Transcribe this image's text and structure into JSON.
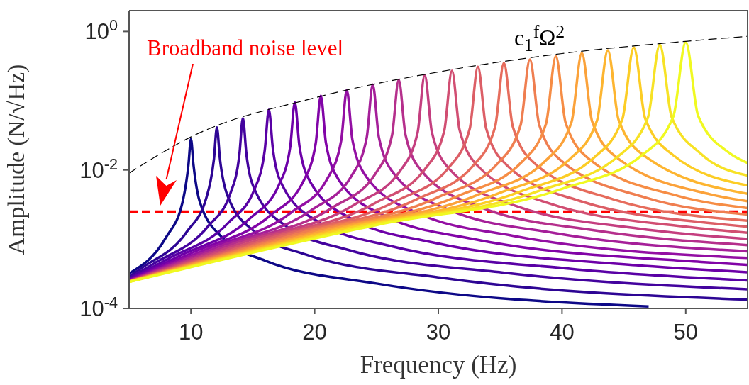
{
  "chart_data": {
    "type": "line",
    "xlabel": "Frequency (Hz)",
    "ylabel": "Amplitude (N/√Hz)",
    "log": "y",
    "xlim": [
      5,
      55
    ],
    "ylim": [
      0.0001,
      2
    ],
    "xticks": [
      10,
      20,
      30,
      40,
      50
    ],
    "yticks": [
      {
        "value": 0.0001,
        "label": "10$^{-4}$"
      },
      {
        "value": 0.01,
        "label": "10$^{-2}$"
      },
      {
        "value": 1,
        "label": "10$^{0}$"
      }
    ],
    "line_style": "solid",
    "ref_lines": [
      {
        "axis": "y",
        "value": 0.0025,
        "label": "Broadband noise level",
        "color": "#ff0000",
        "line_style": "dashed"
      }
    ],
    "series": [
      {
        "color": "#0d0887",
        "x": [
          5,
          8,
          9.3,
          9.8,
          10,
          10.2,
          10.7,
          12.5,
          16,
          25,
          47
        ],
        "values": [
          0.00032,
          0.00107,
          0.0033,
          0.0119,
          0.028,
          0.0121,
          0.00354,
          0.00107,
          0.00049,
          0.000229,
          0.000107
        ]
      },
      {
        "color": "#2d0594",
        "x": [
          5,
          6.05,
          9.68,
          11.25,
          11.86,
          12.1,
          12.34,
          12.95,
          15.13,
          19.36,
          30.25,
          55
        ],
        "values": [
          0.000289,
          0.000387,
          0.00129,
          0.00399,
          0.0144,
          0.041,
          0.0147,
          0.00428,
          0.00129,
          0.000595,
          0.000277,
          0.000134
        ]
      },
      {
        "color": "#43039e",
        "x": [
          5,
          7.1,
          11.36,
          13.21,
          13.92,
          14.2,
          14.48,
          15.19,
          17.75,
          22.72,
          35.5,
          55
        ],
        "values": [
          0.000274,
          0.000454,
          0.00152,
          0.00469,
          0.0169,
          0.056,
          0.0172,
          0.00503,
          0.00152,
          0.000699,
          0.000325,
          0.000189
        ]
      },
      {
        "color": "#5901a5",
        "x": [
          5,
          8.15,
          13.04,
          15.16,
          15.97,
          16.3,
          16.63,
          17.44,
          20.38,
          26.08,
          40.75,
          55
        ],
        "values": [
          0.000265,
          0.000522,
          0.00174,
          0.00538,
          0.0194,
          0.074,
          0.0198,
          0.00577,
          0.00174,
          0.000802,
          0.000373,
          0.000254
        ]
      },
      {
        "color": "#6d00a8",
        "x": [
          5,
          9.2,
          14.72,
          17.11,
          18.03,
          18.4,
          18.77,
          19.69,
          23,
          29.44,
          46,
          55
        ],
        "values": [
          0.000259,
          0.000589,
          0.00196,
          0.00607,
          0.0219,
          0.095,
          0.0223,
          0.00651,
          0.00196,
          0.000905,
          0.000421,
          0.000333
        ]
      },
      {
        "color": "#8104a7",
        "x": [
          5,
          10.25,
          16.4,
          19.07,
          20.09,
          20.5,
          20.91,
          21.94,
          25.63,
          32.8,
          51.25,
          55
        ],
        "values": [
          0.000255,
          0.000656,
          0.00219,
          0.00677,
          0.0244,
          0.118,
          0.0248,
          0.00726,
          0.00219,
          0.00101,
          0.000469,
          0.000426
        ]
      },
      {
        "color": "#930fa3",
        "x": [
          5,
          11.3,
          18.08,
          21.02,
          22.15,
          22.6,
          23.05,
          24.18,
          28.25,
          36.16,
          55
        ],
        "values": [
          0.000252,
          0.000723,
          0.00241,
          0.00746,
          0.0268,
          0.143,
          0.0274,
          0.008,
          0.00241,
          0.00111,
          0.000536
        ]
      },
      {
        "color": "#a51f99",
        "x": [
          5,
          12.35,
          19.76,
          22.97,
          24.21,
          24.7,
          25.19,
          26.43,
          30.88,
          39.52,
          55
        ],
        "values": [
          0.00025,
          0.00079,
          0.00264,
          0.00815,
          0.0293,
          0.171,
          0.0299,
          0.00874,
          0.00264,
          0.00122,
          0.000667
        ]
      },
      {
        "color": "#b52f8c",
        "x": [
          5,
          13.4,
          21.44,
          24.92,
          26.26,
          26.8,
          27.34,
          28.68,
          33.5,
          42.88,
          55
        ],
        "values": [
          0.000249,
          0.000858,
          0.00286,
          0.00884,
          0.0318,
          0.201,
          0.0325,
          0.00949,
          0.00286,
          0.00132,
          0.000822
        ]
      },
      {
        "color": "#c43e7f",
        "x": [
          5,
          14.45,
          23.12,
          26.88,
          28.32,
          28.9,
          29.48,
          30.92,
          36.13,
          46.24,
          55
        ],
        "values": [
          0.000247,
          0.000925,
          0.00308,
          0.00954,
          0.0343,
          0.234,
          0.035,
          0.0102,
          0.00308,
          0.00142,
          0.00101
        ]
      },
      {
        "color": "#d14e72",
        "x": [
          5,
          15.55,
          24.88,
          28.92,
          30.48,
          31.1,
          31.72,
          33.28,
          38.88,
          49.76,
          55
        ],
        "values": [
          0.000246,
          0.000995,
          0.00332,
          0.0103,
          0.0369,
          0.271,
          0.0377,
          0.011,
          0.00332,
          0.00153,
          0.00124
        ]
      },
      {
        "color": "#dc5e66",
        "x": [
          5,
          16.6,
          26.56,
          30.88,
          32.54,
          33.2,
          33.86,
          35.52,
          41.5,
          53.12,
          55
        ],
        "values": [
          0.000246,
          0.00106,
          0.00354,
          0.011,
          0.0394,
          0.309,
          0.0402,
          0.0118,
          0.00354,
          0.00163,
          0.00151
        ]
      },
      {
        "color": "#e66c5c",
        "x": [
          5,
          17.65,
          28.24,
          32.83,
          34.59,
          35.3,
          36.01,
          37.77,
          44.13,
          55
        ],
        "values": [
          0.000245,
          0.00113,
          0.00377,
          0.0116,
          0.0419,
          0.349,
          0.0428,
          0.0125,
          0.00377,
          0.00185
        ]
      },
      {
        "color": "#ef7e50",
        "x": [
          5,
          18.7,
          29.92,
          34.78,
          36.65,
          37.4,
          38.15,
          40.02,
          46.75,
          55
        ],
        "values": [
          0.000244,
          0.0012,
          0.00399,
          0.0123,
          0.0444,
          0.392,
          0.0453,
          0.0132,
          0.00399,
          0.00227
        ]
      },
      {
        "color": "#f68d45",
        "x": [
          5,
          19.75,
          31.6,
          36.74,
          38.71,
          39.5,
          40.29,
          42.27,
          49.38,
          55
        ],
        "values": [
          0.000244,
          0.00126,
          0.00421,
          0.013,
          0.0469,
          0.437,
          0.0479,
          0.014,
          0.00421,
          0.00281
        ]
      },
      {
        "color": "#fba23a",
        "x": [
          5,
          20.8,
          33.28,
          38.69,
          40.77,
          41.6,
          42.43,
          44.51,
          52,
          55
        ],
        "values": [
          0.000244,
          0.00133,
          0.00444,
          0.0137,
          0.0494,
          0.485,
          0.0504,
          0.0147,
          0.00444,
          0.00353
        ]
      },
      {
        "color": "#fdb530",
        "x": [
          5,
          21.85,
          34.96,
          40.64,
          42.83,
          43.7,
          44.57,
          46.76,
          55
        ],
        "values": [
          0.000243,
          0.0014,
          0.00466,
          0.0144,
          0.0519,
          0.535,
          0.053,
          0.0155,
          0.00452
        ]
      },
      {
        "color": "#fccd25",
        "x": [
          5,
          22.9,
          36.64,
          42.59,
          44.88,
          45.8,
          46.72,
          49.01,
          55
        ],
        "values": [
          0.000243,
          0.00147,
          0.00489,
          0.0151,
          0.0544,
          0.587,
          0.0555,
          0.0162,
          0.00597
        ]
      },
      {
        "color": "#f7e225",
        "x": [
          5,
          23.95,
          38.32,
          44.55,
          46.94,
          47.9,
          48.86,
          51.25,
          55
        ],
        "values": [
          0.000243,
          0.00153,
          0.00511,
          0.0158,
          0.0569,
          0.642,
          0.0581,
          0.017,
          0.0083
        ]
      },
      {
        "color": "#f0f921",
        "x": [
          5,
          25,
          40,
          46.5,
          49,
          50,
          51,
          53.5,
          55
        ],
        "values": [
          0.000242,
          0.0016,
          0.00533,
          0.0165,
          0.0594,
          0.7,
          0.0606,
          0.0177,
          0.0126
        ]
      },
      {
        "name": "c$_{1}$$^{f}$Ω$^{2}$",
        "color": "#000000",
        "line_style": "dashed",
        "x": [
          5,
          10,
          20,
          30,
          40,
          50,
          55
        ],
        "values": [
          0.009,
          0.03,
          0.11,
          0.26,
          0.48,
          0.72,
          0.85
        ]
      }
    ]
  }
}
